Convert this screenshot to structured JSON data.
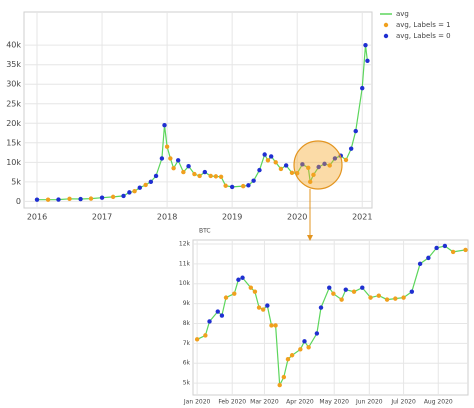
{
  "chart_data": [
    {
      "type": "line",
      "mode": "lines+markers",
      "legend": "top-right",
      "grid": true,
      "xlim": [
        2015.8,
        2021.15
      ],
      "xticks": [
        2016,
        2017,
        2018,
        2019,
        2020,
        2021
      ],
      "ylim": [
        -1700,
        48500
      ],
      "yticks": [
        0,
        {
          "value": 5000,
          "label": "5k"
        },
        {
          "value": 10000,
          "label": "10k"
        },
        {
          "value": 15000,
          "label": "15k"
        },
        {
          "value": 20000,
          "label": "20k"
        },
        {
          "value": 25000,
          "label": "25k"
        },
        {
          "value": 30000,
          "label": "30k"
        },
        {
          "value": 35000,
          "label": "35k"
        },
        {
          "value": 40000,
          "label": "40k"
        }
      ],
      "x": [
        2016.0,
        2016.17,
        2016.33,
        2016.5,
        2016.67,
        2016.83,
        2017.0,
        2017.17,
        2017.33,
        2017.42,
        2017.5,
        2017.58,
        2017.67,
        2017.75,
        2017.83,
        2017.92,
        2017.96,
        2018.0,
        2018.05,
        2018.1,
        2018.17,
        2018.25,
        2018.33,
        2018.42,
        2018.5,
        2018.58,
        2018.67,
        2018.75,
        2018.83,
        2018.9,
        2019.0,
        2019.17,
        2019.25,
        2019.33,
        2019.42,
        2019.5,
        2019.55,
        2019.6,
        2019.67,
        2019.75,
        2019.83,
        2019.92,
        2020.0,
        2020.08,
        2020.17,
        2020.2,
        2020.25,
        2020.33,
        2020.42,
        2020.5,
        2020.58,
        2020.67,
        2020.75,
        2020.83,
        2020.9,
        2021.0,
        2021.05,
        2021.08
      ],
      "series": [
        {
          "name": "avg",
          "color": "#5cd65c",
          "mode": "lines",
          "values": [
            430,
            420,
            450,
            650,
            600,
            700,
            950,
            1150,
            1400,
            2300,
            2600,
            3500,
            4200,
            5000,
            6500,
            11000,
            19500,
            14000,
            11000,
            8500,
            10500,
            7500,
            9000,
            7000,
            6500,
            7500,
            6500,
            6400,
            6300,
            4000,
            3700,
            3900,
            4100,
            5300,
            8000,
            12000,
            10500,
            11500,
            10000,
            8300,
            9200,
            7300,
            7200,
            9500,
            8600,
            5000,
            6800,
            8800,
            9600,
            9200,
            11000,
            11700,
            10600,
            13500,
            18000,
            29000,
            40000,
            36000
          ]
        },
        {
          "name": "avg, Labels = 1",
          "color": "#f0a01e",
          "mode": "markers",
          "values": [
            null,
            420,
            null,
            650,
            null,
            700,
            null,
            1150,
            null,
            null,
            2600,
            null,
            4200,
            null,
            null,
            null,
            null,
            14000,
            11000,
            8500,
            null,
            7500,
            null,
            7000,
            6500,
            null,
            6500,
            6400,
            6300,
            4000,
            null,
            3900,
            null,
            null,
            null,
            null,
            10500,
            null,
            10000,
            8300,
            null,
            7300,
            7200,
            null,
            8600,
            5000,
            6800,
            null,
            null,
            9200,
            null,
            null,
            10600,
            null,
            null,
            null,
            null,
            null
          ]
        },
        {
          "name": "avg, Labels = 0",
          "color": "#1f2fd1",
          "mode": "markers",
          "values": [
            430,
            null,
            450,
            null,
            600,
            null,
            950,
            null,
            1400,
            2300,
            null,
            3500,
            null,
            5000,
            6500,
            11000,
            19500,
            null,
            null,
            null,
            10500,
            null,
            9000,
            null,
            null,
            7500,
            null,
            null,
            null,
            null,
            3700,
            null,
            4100,
            5300,
            8000,
            12000,
            null,
            11500,
            null,
            null,
            9200,
            null,
            null,
            9500,
            null,
            null,
            null,
            8800,
            9600,
            null,
            11000,
            11700,
            null,
            13500,
            18000,
            29000,
            40000,
            36000
          ]
        }
      ]
    },
    {
      "type": "line",
      "mode": "lines+markers",
      "title": "BTC",
      "grid": true,
      "xlim": [
        2019.99,
        2020.656
      ],
      "xticks": [
        {
          "value": 2020.0,
          "label": "Jan 2020"
        },
        {
          "value": 2020.085,
          "label": "Feb 2020"
        },
        {
          "value": 2020.163,
          "label": "Mar 2020"
        },
        {
          "value": 2020.249,
          "label": "Apr 2020"
        },
        {
          "value": 2020.332,
          "label": "May 2020"
        },
        {
          "value": 2020.417,
          "label": "Jun 2020"
        },
        {
          "value": 2020.5,
          "label": "Jul 2020"
        },
        {
          "value": 2020.584,
          "label": "Aug 2020"
        }
      ],
      "ylim": [
        4400,
        12200
      ],
      "yticks": [
        {
          "value": 5000,
          "label": "5k"
        },
        {
          "value": 6000,
          "label": "6k"
        },
        {
          "value": 7000,
          "label": "7k"
        },
        {
          "value": 8000,
          "label": "8k"
        },
        {
          "value": 9000,
          "label": "9k"
        },
        {
          "value": 10000,
          "label": "10k"
        },
        {
          "value": 11000,
          "label": "11k"
        },
        {
          "value": 12000,
          "label": "12k"
        }
      ],
      "x": [
        2020.0,
        2020.02,
        2020.03,
        2020.05,
        2020.06,
        2020.07,
        2020.09,
        2020.1,
        2020.11,
        2020.13,
        2020.14,
        2020.15,
        2020.16,
        2020.17,
        2020.18,
        2020.19,
        2020.2,
        2020.21,
        2020.22,
        2020.23,
        2020.25,
        2020.26,
        2020.27,
        2020.29,
        2020.3,
        2020.32,
        2020.33,
        2020.35,
        2020.36,
        2020.38,
        2020.4,
        2020.42,
        2020.44,
        2020.46,
        2020.48,
        2020.5,
        2020.52,
        2020.54,
        2020.56,
        2020.58,
        2020.6,
        2020.62,
        2020.65
      ],
      "series": [
        {
          "name": "avg",
          "color": "#5cd65c",
          "mode": "lines",
          "values": [
            7200,
            7400,
            8100,
            8600,
            8400,
            9300,
            9500,
            10200,
            10300,
            9800,
            9600,
            8800,
            8700,
            8900,
            7900,
            7900,
            4900,
            5300,
            6200,
            6400,
            6700,
            7100,
            6800,
            7500,
            8800,
            9800,
            9500,
            9200,
            9700,
            9600,
            9800,
            9300,
            9400,
            9200,
            9250,
            9300,
            9600,
            11000,
            11300,
            11800,
            11900,
            11600,
            11700
          ]
        },
        {
          "name": "avg, Labels = 1",
          "color": "#f0a01e",
          "mode": "markers",
          "values": [
            7200,
            7400,
            null,
            null,
            null,
            9300,
            9500,
            null,
            null,
            9800,
            9600,
            8800,
            8700,
            null,
            7900,
            7900,
            4900,
            5300,
            6200,
            6400,
            6700,
            null,
            6800,
            null,
            null,
            null,
            9500,
            9200,
            null,
            9600,
            null,
            9300,
            9400,
            9200,
            9250,
            9300,
            null,
            null,
            null,
            null,
            null,
            11600,
            11700
          ]
        },
        {
          "name": "avg, Labels = 0",
          "color": "#1f2fd1",
          "mode": "markers",
          "values": [
            null,
            null,
            8100,
            8600,
            8400,
            null,
            null,
            10200,
            10300,
            null,
            null,
            null,
            null,
            8900,
            null,
            null,
            null,
            null,
            null,
            null,
            null,
            7100,
            null,
            7500,
            8800,
            9800,
            null,
            null,
            9700,
            null,
            9800,
            null,
            null,
            null,
            null,
            null,
            9600,
            11000,
            11300,
            11800,
            11900,
            null,
            null
          ]
        }
      ]
    }
  ]
}
